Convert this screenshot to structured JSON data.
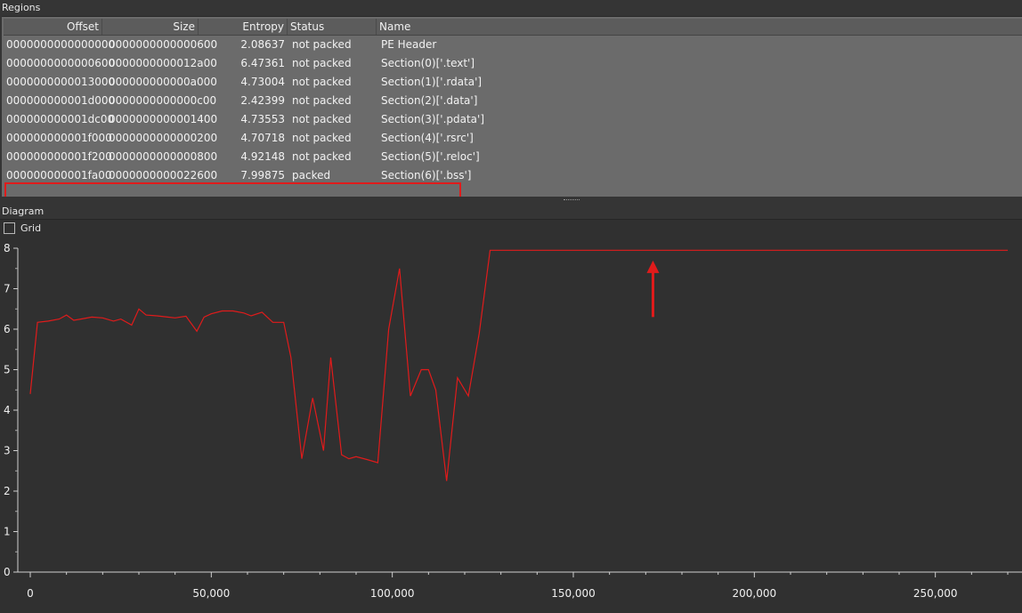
{
  "regions": {
    "title": "Regions",
    "columns": [
      "Offset",
      "Size",
      "Entropy",
      "Status",
      "Name"
    ],
    "rows": [
      {
        "offset": "0000000000000000",
        "size": "0000000000000600",
        "entropy": "2.08637",
        "status": "not packed",
        "name": "PE Header"
      },
      {
        "offset": "0000000000000600",
        "size": "0000000000012a00",
        "entropy": "6.47361",
        "status": "not packed",
        "name": "Section(0)['.text']"
      },
      {
        "offset": "0000000000013000",
        "size": "000000000000a000",
        "entropy": "4.73004",
        "status": "not packed",
        "name": "Section(1)['.rdata']"
      },
      {
        "offset": "000000000001d000",
        "size": "0000000000000c00",
        "entropy": "2.42399",
        "status": "not packed",
        "name": "Section(2)['.data']"
      },
      {
        "offset": "000000000001dc00",
        "size": "0000000000001400",
        "entropy": "4.73553",
        "status": "not packed",
        "name": "Section(3)['.pdata']"
      },
      {
        "offset": "000000000001f000",
        "size": "0000000000000200",
        "entropy": "4.70718",
        "status": "not packed",
        "name": "Section(4)['.rsrc']"
      },
      {
        "offset": "000000000001f200",
        "size": "0000000000000800",
        "entropy": "4.92148",
        "status": "not packed",
        "name": "Section(5)['.reloc']"
      },
      {
        "offset": "000000000001fa00",
        "size": "0000000000022600",
        "entropy": "7.99875",
        "status": "packed",
        "name": "Section(6)['.bss']"
      }
    ],
    "highlight_color": "#e01b1b"
  },
  "diagram": {
    "title": "Diagram",
    "grid_label": "Grid",
    "grid_checked": false
  },
  "chart_data": {
    "type": "line",
    "title": "",
    "xlabel": "",
    "ylabel": "",
    "xlim": [
      0,
      270000
    ],
    "ylim": [
      0,
      8
    ],
    "x_ticks": [
      0,
      50000,
      100000,
      150000,
      200000,
      250000
    ],
    "x_tick_labels": [
      "0",
      "50,000",
      "100,000",
      "150,000",
      "200,000",
      "250,000"
    ],
    "y_ticks": [
      0,
      1,
      2,
      3,
      4,
      5,
      6,
      7,
      8
    ],
    "y_tick_labels": [
      "0",
      "1",
      "2",
      "3",
      "4",
      "5",
      "6",
      "7",
      "8"
    ],
    "grid": false,
    "line_color": "#e01b1b",
    "series": [
      {
        "x": [
          0,
          2000,
          5000,
          8000,
          10000,
          12000,
          14000,
          17000,
          20000,
          23000,
          25000,
          28000,
          30000,
          32000,
          35000,
          38000,
          40000,
          43000,
          46000,
          48000,
          50000,
          53000,
          56000,
          59000,
          61000,
          64000,
          67000,
          70000,
          72000,
          75000,
          78000,
          81000,
          83000,
          86000,
          88000,
          90000,
          93000,
          96000,
          99000,
          102000,
          105000,
          108000,
          110000,
          112000,
          115000,
          118000,
          121000,
          124000,
          127000,
          129000,
          135000,
          160000,
          200000,
          230000,
          270000
        ],
        "y": [
          4.4,
          6.17,
          6.2,
          6.25,
          6.35,
          6.22,
          6.25,
          6.3,
          6.28,
          6.2,
          6.25,
          6.1,
          6.5,
          6.35,
          6.33,
          6.3,
          6.28,
          6.32,
          5.95,
          6.3,
          6.38,
          6.45,
          6.45,
          6.4,
          6.33,
          6.42,
          6.17,
          6.17,
          5.3,
          2.8,
          4.3,
          3.0,
          5.3,
          2.9,
          2.8,
          2.85,
          2.78,
          2.7,
          6.0,
          7.5,
          4.35,
          5.0,
          5.0,
          4.5,
          2.25,
          4.8,
          4.35,
          5.9,
          7.95,
          7.95,
          7.95,
          7.95,
          7.95,
          7.95,
          7.95
        ]
      }
    ],
    "annotation": {
      "type": "arrow",
      "x": 172000,
      "y_from": 6.3,
      "y_to": 7.65,
      "color": "#e01b1b"
    }
  }
}
